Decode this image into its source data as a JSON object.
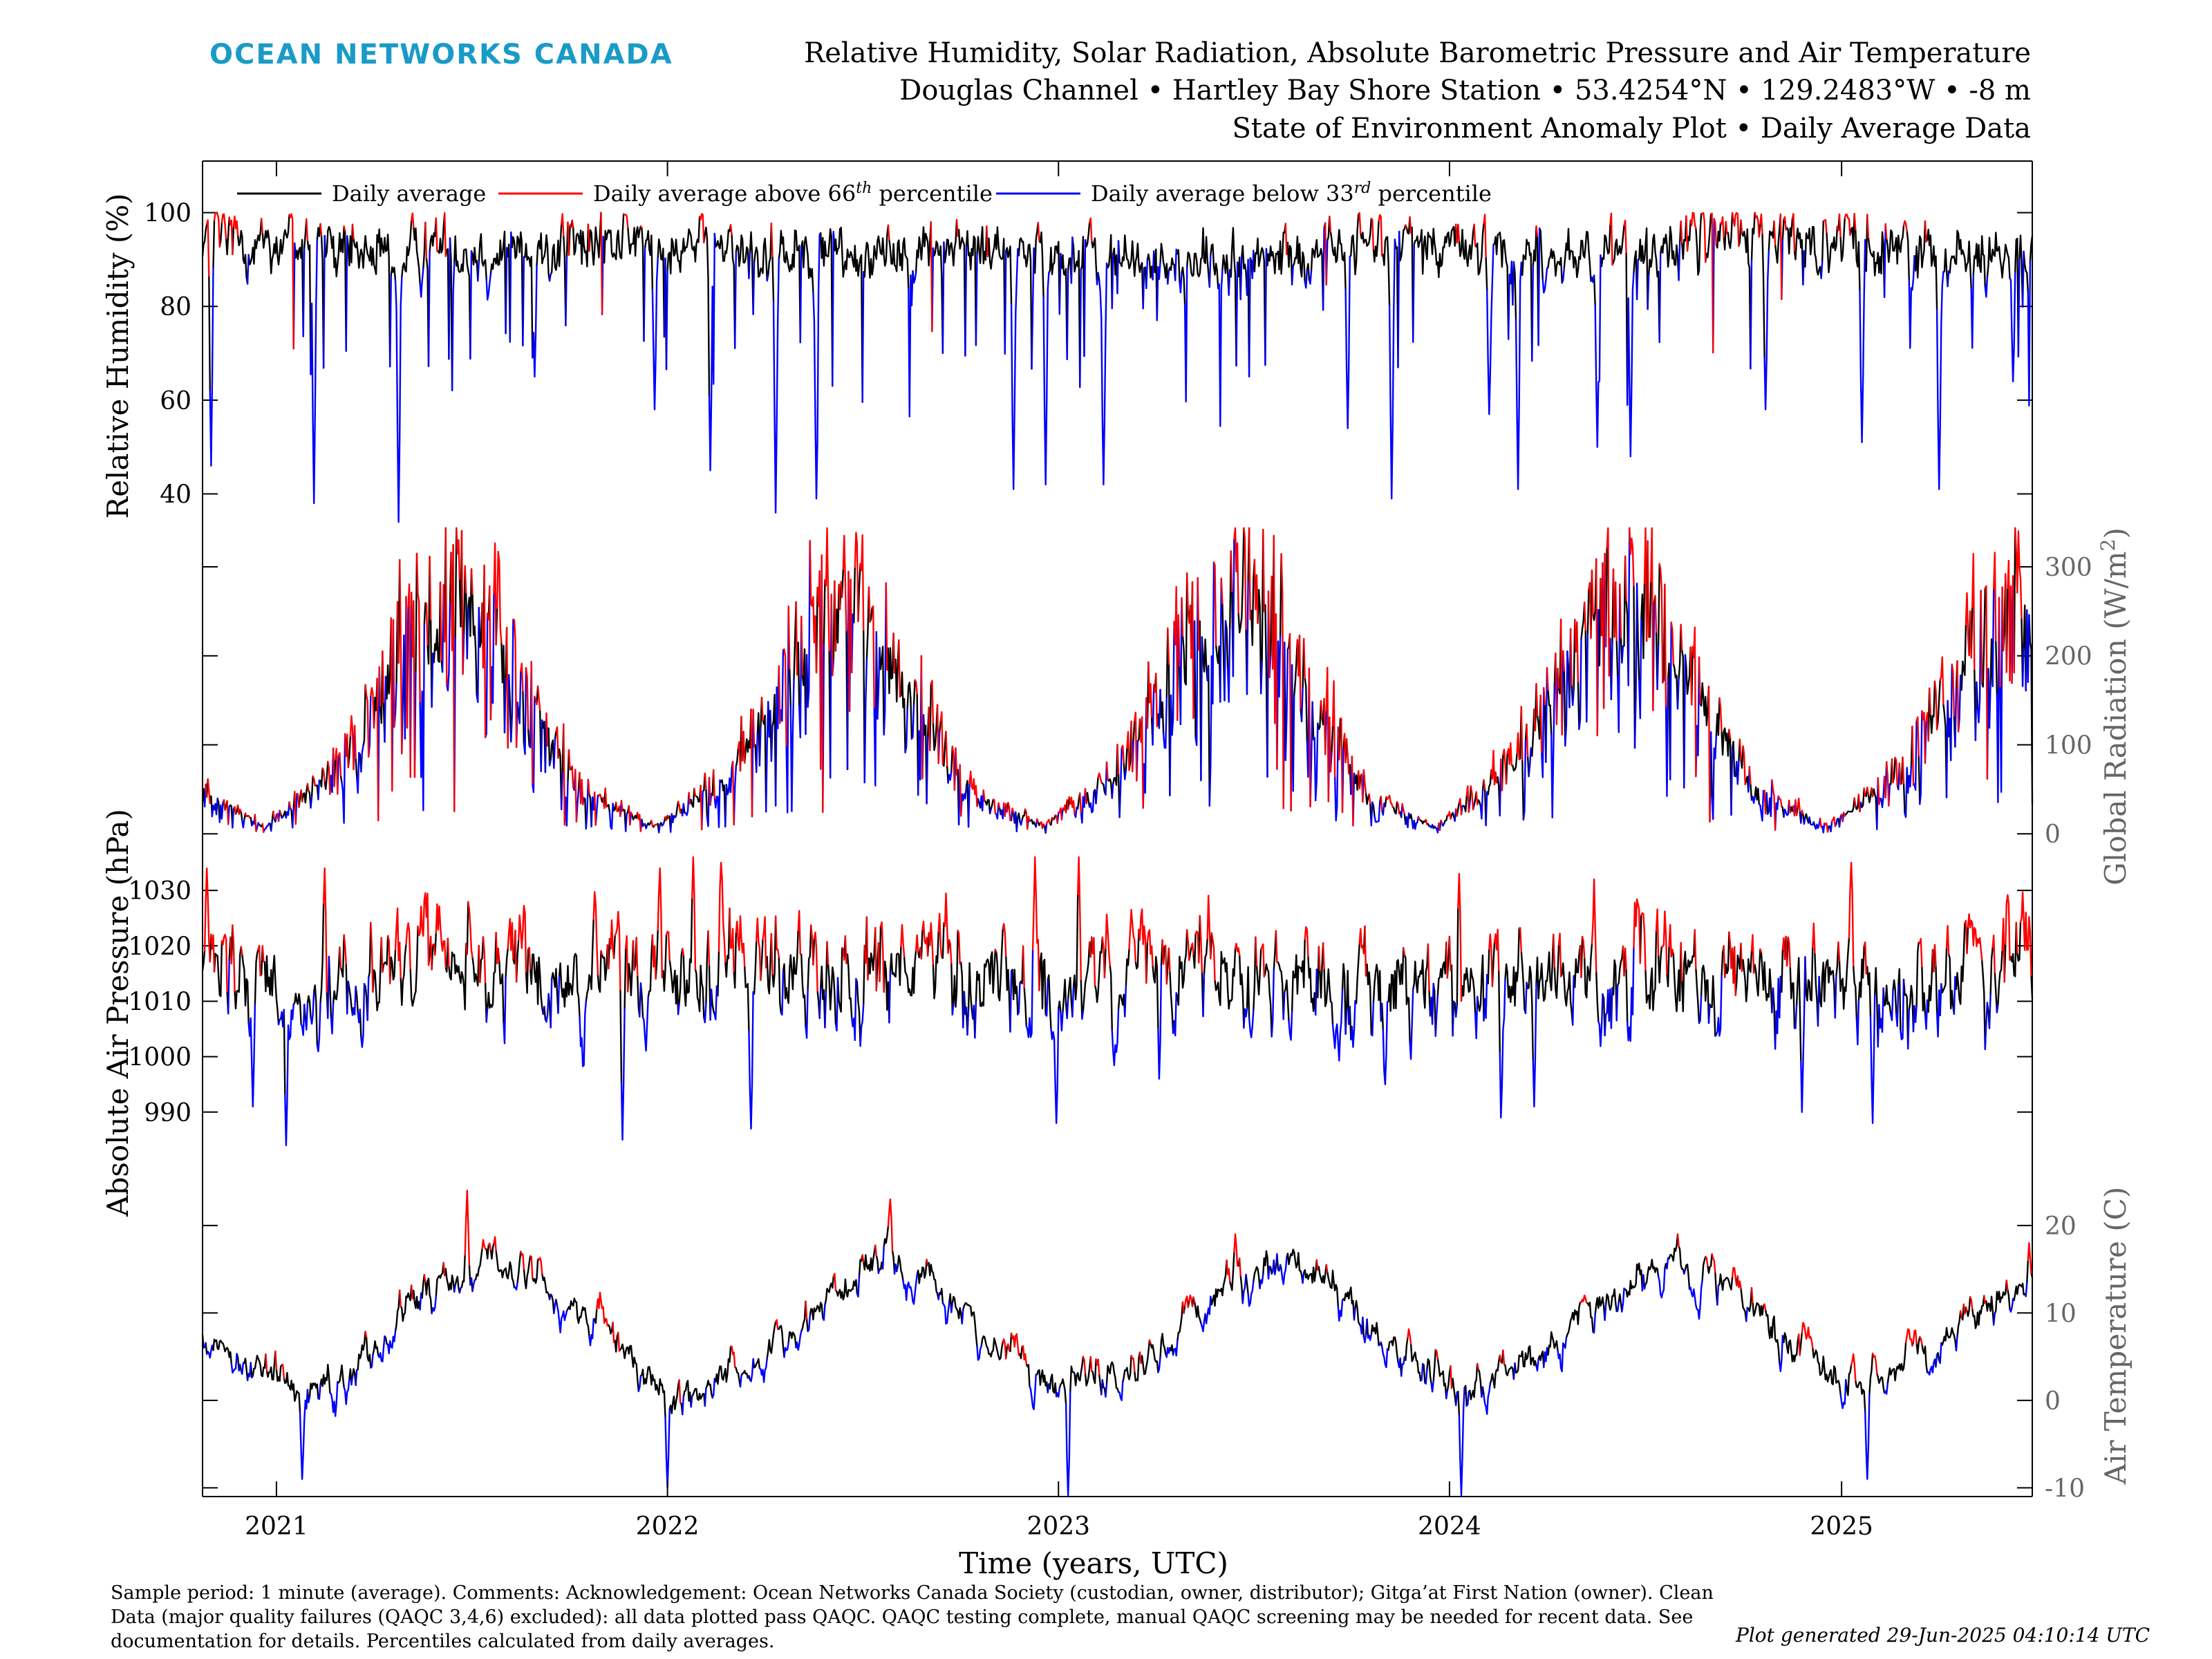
{
  "header": {
    "brand": "OCEAN NETWORKS CANADA",
    "title_lines": [
      "Relative Humidity, Solar Radiation, Absolute Barometric Pressure and Air Temperature",
      "Douglas Channel • Hartley Bay Shore Station • 53.4254°N • 129.2483°W • -8 m",
      "State of Environment Anomaly Plot • Daily Average Data"
    ]
  },
  "colors": {
    "brand": "#1a9bc7",
    "normal": "#000000",
    "above": "#ff0000",
    "below": "#0000ff",
    "right_axis": "#666666"
  },
  "legend": {
    "placement": "top-left",
    "items": [
      {
        "key": "normal",
        "label": "Daily average"
      },
      {
        "key": "above",
        "label": "Daily average above 66",
        "sup": "th",
        "suffix": " percentile"
      },
      {
        "key": "below",
        "label": "Daily average below 33",
        "sup": "rd",
        "suffix": " percentile"
      }
    ]
  },
  "x_axis": {
    "label": "Time (years, UTC)",
    "ticks": [
      "2021",
      "2022",
      "2023",
      "2024",
      "2025"
    ]
  },
  "footer": {
    "notes_lines": [
      "Sample period: 1 minute (average). Comments: Acknowledgement: Ocean Networks Canada Society (custodian, owner, distributor); Gitga’at First Nation (owner). Clean",
      "Data (major quality failures (QAQC 3,4,6) excluded): all data plotted pass QAQC. QAQC testing complete, manual QAQC screening may be needed for recent data. See",
      "documentation for details. Percentiles calculated from daily averages."
    ],
    "generated": "Plot generated 29-Jun-2025 04:10:14 UTC"
  },
  "chart_data": [
    {
      "type": "line",
      "name": "humidity",
      "ylabel": "Relative Humidity (%)",
      "axis_side": "left",
      "ylim": [
        33,
        111
      ],
      "yticks": [
        "40",
        "60",
        "80",
        "100"
      ],
      "x_range": [
        "2020-10-24",
        "2025-06-28"
      ],
      "anchors": [
        [
          "2020-10-24",
          96
        ],
        [
          "2021-01-15",
          94
        ],
        [
          "2021-04-01",
          90
        ],
        [
          "2021-06-01",
          93
        ],
        [
          "2021-08-01",
          90
        ],
        [
          "2021-10-01",
          93
        ],
        [
          "2022-01-15",
          95
        ],
        [
          "2022-04-01",
          91
        ],
        [
          "2022-07-01",
          92
        ],
        [
          "2022-10-01",
          93
        ],
        [
          "2023-01-15",
          90
        ],
        [
          "2023-04-01",
          89
        ],
        [
          "2023-07-01",
          88
        ],
        [
          "2023-10-01",
          94
        ],
        [
          "2024-01-15",
          93
        ],
        [
          "2024-04-01",
          91
        ],
        [
          "2024-07-01",
          92
        ],
        [
          "2024-10-01",
          96
        ],
        [
          "2025-01-15",
          93
        ],
        [
          "2025-04-01",
          91
        ],
        [
          "2025-06-28",
          90
        ]
      ],
      "spikes": [
        [
          "2020-11-01",
          46
        ],
        [
          "2021-02-05",
          38
        ],
        [
          "2021-04-25",
          34
        ],
        [
          "2021-08-30",
          65
        ],
        [
          "2021-12-20",
          58
        ],
        [
          "2022-02-10",
          45
        ],
        [
          "2022-04-12",
          36
        ],
        [
          "2022-05-20",
          39
        ],
        [
          "2022-11-20",
          41
        ],
        [
          "2022-12-20",
          42
        ],
        [
          "2023-02-12",
          42
        ],
        [
          "2023-09-28",
          54
        ],
        [
          "2023-11-08",
          39
        ],
        [
          "2024-02-07",
          57
        ],
        [
          "2024-03-05",
          41
        ],
        [
          "2024-05-18",
          50
        ],
        [
          "2024-06-18",
          48
        ],
        [
          "2024-10-22",
          58
        ],
        [
          "2025-01-20",
          51
        ],
        [
          "2025-04-02",
          41
        ],
        [
          "2025-06-10",
          64
        ]
      ],
      "variability": 5.0,
      "above_threshold": 97,
      "below_threshold": 86
    },
    {
      "type": "line",
      "name": "global_radiation",
      "ylabel": "Global Radiation (W/m²)",
      "axis_side": "right",
      "ylim": [
        -20,
        345
      ],
      "yticks": [
        "0",
        "100",
        "200",
        "300"
      ],
      "x_range": [
        "2020-10-24",
        "2025-06-28"
      ],
      "anchors": [
        [
          "2020-10-24",
          45
        ],
        [
          "2020-12-20",
          8
        ],
        [
          "2021-03-01",
          70
        ],
        [
          "2021-05-01",
          200
        ],
        [
          "2021-06-25",
          255
        ],
        [
          "2021-08-15",
          160
        ],
        [
          "2021-10-15",
          45
        ],
        [
          "2021-12-20",
          8
        ],
        [
          "2022-03-01",
          65
        ],
        [
          "2022-05-01",
          190
        ],
        [
          "2022-06-25",
          250
        ],
        [
          "2022-08-15",
          150
        ],
        [
          "2022-10-15",
          40
        ],
        [
          "2022-12-20",
          8
        ],
        [
          "2023-03-01",
          70
        ],
        [
          "2023-05-01",
          210
        ],
        [
          "2023-06-25",
          265
        ],
        [
          "2023-08-15",
          165
        ],
        [
          "2023-10-15",
          40
        ],
        [
          "2023-12-20",
          8
        ],
        [
          "2024-03-01",
          70
        ],
        [
          "2024-05-01",
          205
        ],
        [
          "2024-06-25",
          255
        ],
        [
          "2024-08-15",
          165
        ],
        [
          "2024-10-15",
          45
        ],
        [
          "2024-12-20",
          8
        ],
        [
          "2025-03-01",
          70
        ],
        [
          "2025-05-01",
          190
        ],
        [
          "2025-06-28",
          240
        ]
      ],
      "spikes": [
        [
          "2021-06-20",
          330
        ],
        [
          "2022-06-15",
          335
        ],
        [
          "2023-06-15",
          345
        ],
        [
          "2024-06-20",
          322
        ],
        [
          "2025-06-15",
          340
        ]
      ],
      "variability": 0.45,
      "above_threshold": 1.15,
      "below_threshold": 0.8
    },
    {
      "type": "line",
      "name": "air_pressure",
      "ylabel": "Absolute Air Pressure (hPa)",
      "axis_side": "left",
      "ylim": [
        979,
        1037
      ],
      "yticks": [
        "990",
        "1000",
        "1010",
        "1020",
        "1030"
      ],
      "x_range": [
        "2020-10-24",
        "2025-06-28"
      ],
      "anchors": [
        [
          "2020-10-24",
          1014
        ],
        [
          "2021-01-15",
          1010
        ],
        [
          "2021-04-01",
          1016
        ],
        [
          "2021-07-01",
          1017
        ],
        [
          "2021-10-01",
          1012
        ],
        [
          "2022-01-15",
          1016
        ],
        [
          "2022-04-01",
          1015
        ],
        [
          "2022-07-01",
          1017
        ],
        [
          "2022-10-01",
          1014
        ],
        [
          "2023-01-15",
          1010
        ],
        [
          "2023-04-01",
          1015
        ],
        [
          "2023-07-01",
          1017
        ],
        [
          "2023-10-01",
          1011
        ],
        [
          "2024-01-15",
          1012
        ],
        [
          "2024-04-01",
          1015
        ],
        [
          "2024-07-01",
          1016
        ],
        [
          "2024-10-01",
          1012
        ],
        [
          "2025-01-15",
          1013
        ],
        [
          "2025-04-01",
          1014
        ],
        [
          "2025-06-28",
          1016
        ]
      ],
      "spikes": [
        [
          "2020-10-28",
          1034
        ],
        [
          "2020-12-10",
          991
        ],
        [
          "2021-01-10",
          984
        ],
        [
          "2021-02-15",
          1034
        ],
        [
          "2021-11-20",
          985
        ],
        [
          "2021-12-25",
          1034
        ],
        [
          "2022-01-25",
          1036
        ],
        [
          "2022-02-20",
          1035
        ],
        [
          "2022-03-20",
          987
        ],
        [
          "2022-12-10",
          1036
        ],
        [
          "2022-12-30",
          988
        ],
        [
          "2023-01-20",
          1036
        ],
        [
          "2023-04-05",
          996
        ],
        [
          "2023-11-02",
          995
        ],
        [
          "2024-01-10",
          1033
        ],
        [
          "2024-02-18",
          989
        ],
        [
          "2024-03-20",
          991
        ],
        [
          "2024-05-15",
          1032
        ],
        [
          "2024-11-25",
          990
        ],
        [
          "2025-01-10",
          1035
        ],
        [
          "2025-01-30",
          988
        ]
      ],
      "variability": 7.0,
      "above_threshold": 1019,
      "below_threshold": 1008
    },
    {
      "type": "line",
      "name": "air_temperature",
      "ylabel": "Air Temperature (C)",
      "axis_side": "right",
      "ylim": [
        -11,
        26
      ],
      "yticks": [
        "-10",
        "0",
        "10",
        "20"
      ],
      "x_range": [
        "2020-10-24",
        "2025-06-28"
      ],
      "anchors": [
        [
          "2020-10-24",
          8
        ],
        [
          "2020-12-01",
          5
        ],
        [
          "2021-01-20",
          1
        ],
        [
          "2021-03-15",
          4
        ],
        [
          "2021-05-15",
          12
        ],
        [
          "2021-07-20",
          16
        ],
        [
          "2021-09-15",
          13
        ],
        [
          "2021-11-15",
          6
        ],
        [
          "2022-01-05",
          0
        ],
        [
          "2022-03-15",
          4
        ],
        [
          "2022-05-15",
          10
        ],
        [
          "2022-07-25",
          17
        ],
        [
          "2022-09-15",
          13
        ],
        [
          "2022-11-15",
          4
        ],
        [
          "2023-01-05",
          2
        ],
        [
          "2023-03-15",
          3
        ],
        [
          "2023-05-15",
          11
        ],
        [
          "2023-07-25",
          17
        ],
        [
          "2023-09-15",
          13
        ],
        [
          "2023-11-15",
          6
        ],
        [
          "2024-01-15",
          1
        ],
        [
          "2024-03-15",
          5
        ],
        [
          "2024-05-15",
          10
        ],
        [
          "2024-07-25",
          17
        ],
        [
          "2024-09-15",
          13
        ],
        [
          "2024-11-15",
          6
        ],
        [
          "2025-01-15",
          1
        ],
        [
          "2025-03-15",
          5
        ],
        [
          "2025-05-15",
          10
        ],
        [
          "2025-06-28",
          14
        ]
      ],
      "spikes": [
        [
          "2021-01-25",
          -9
        ],
        [
          "2021-06-28",
          24
        ],
        [
          "2022-01-01",
          -10
        ],
        [
          "2022-07-28",
          23
        ],
        [
          "2023-01-10",
          -11
        ],
        [
          "2023-06-15",
          19
        ],
        [
          "2024-01-12",
          -11
        ],
        [
          "2024-08-01",
          19
        ],
        [
          "2025-01-25",
          -9
        ],
        [
          "2025-06-25",
          18
        ]
      ],
      "variability": 1.6,
      "above_threshold": 1.8,
      "below_threshold": -1.5
    }
  ]
}
